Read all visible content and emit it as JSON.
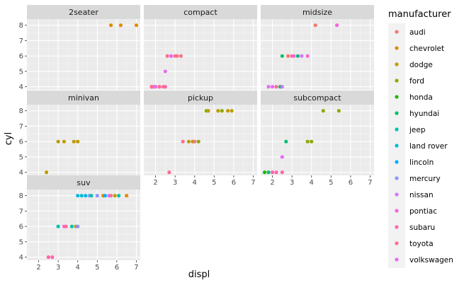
{
  "chart_data": {
    "type": "scatter",
    "facet_by": "class",
    "xlabel": "displ",
    "ylabel": "cyl",
    "xlim": [
      1.4,
      7.2
    ],
    "ylim": [
      3.8,
      8.4
    ],
    "x_ticks": [
      2,
      3,
      4,
      5,
      6,
      7
    ],
    "y_ticks": [
      4,
      5,
      6,
      7,
      8
    ],
    "grid": true,
    "legend": {
      "title": "manufacturer",
      "position": "right",
      "entries": [
        {
          "name": "audi",
          "color": "#F8766D"
        },
        {
          "name": "chevrolet",
          "color": "#E18A00"
        },
        {
          "name": "dodge",
          "color": "#BE9C00"
        },
        {
          "name": "ford",
          "color": "#8CAB00"
        },
        {
          "name": "honda",
          "color": "#24B700"
        },
        {
          "name": "hyundai",
          "color": "#00BE70"
        },
        {
          "name": "jeep",
          "color": "#00C1AB"
        },
        {
          "name": "land rover",
          "color": "#00BBDA"
        },
        {
          "name": "lincoln",
          "color": "#00ACFC"
        },
        {
          "name": "mercury",
          "color": "#8B93FF"
        },
        {
          "name": "nissan",
          "color": "#D575FE"
        },
        {
          "name": "pontiac",
          "color": "#F962DD"
        },
        {
          "name": "subaru",
          "color": "#FF65AC"
        },
        {
          "name": "toyota",
          "color": "#FF6C91"
        },
        {
          "name": "volkswagen",
          "color": "#E76BF3"
        }
      ]
    },
    "panels": [
      {
        "label": "2seater",
        "points": [
          {
            "x": 5.7,
            "y": 8,
            "m": "chevrolet"
          },
          {
            "x": 6.2,
            "y": 8,
            "m": "chevrolet"
          },
          {
            "x": 7.0,
            "y": 8,
            "m": "chevrolet"
          }
        ]
      },
      {
        "label": "compact",
        "points": [
          {
            "x": 1.8,
            "y": 4,
            "m": "audi"
          },
          {
            "x": 2.0,
            "y": 4,
            "m": "audi"
          },
          {
            "x": 2.8,
            "y": 6,
            "m": "audi"
          },
          {
            "x": 3.1,
            "y": 6,
            "m": "audi"
          },
          {
            "x": 2.5,
            "y": 5,
            "m": "volkswagen"
          },
          {
            "x": 1.9,
            "y": 4,
            "m": "volkswagen"
          },
          {
            "x": 2.0,
            "y": 4,
            "m": "volkswagen"
          },
          {
            "x": 1.8,
            "y": 4,
            "m": "subaru"
          },
          {
            "x": 2.2,
            "y": 4,
            "m": "subaru"
          },
          {
            "x": 2.4,
            "y": 4,
            "m": "toyota"
          },
          {
            "x": 1.8,
            "y": 4,
            "m": "toyota"
          },
          {
            "x": 2.2,
            "y": 4,
            "m": "toyota"
          },
          {
            "x": 2.5,
            "y": 4,
            "m": "subaru"
          },
          {
            "x": 2.6,
            "y": 6,
            "m": "toyota"
          },
          {
            "x": 2.8,
            "y": 6,
            "m": "volkswagen"
          },
          {
            "x": 3.0,
            "y": 6,
            "m": "toyota"
          },
          {
            "x": 3.3,
            "y": 6,
            "m": "toyota"
          }
        ]
      },
      {
        "label": "midsize",
        "points": [
          {
            "x": 4.2,
            "y": 8,
            "m": "audi"
          },
          {
            "x": 5.3,
            "y": 8,
            "m": "pontiac"
          },
          {
            "x": 1.8,
            "y": 4,
            "m": "volkswagen"
          },
          {
            "x": 2.0,
            "y": 4,
            "m": "volkswagen"
          },
          {
            "x": 2.2,
            "y": 4,
            "m": "toyota"
          },
          {
            "x": 2.4,
            "y": 4,
            "m": "toyota"
          },
          {
            "x": 2.4,
            "y": 4,
            "m": "hyundai"
          },
          {
            "x": 2.5,
            "y": 4,
            "m": "nissan"
          },
          {
            "x": 2.5,
            "y": 6,
            "m": "hyundai"
          },
          {
            "x": 2.8,
            "y": 6,
            "m": "audi"
          },
          {
            "x": 3.0,
            "y": 6,
            "m": "toyota"
          },
          {
            "x": 3.1,
            "y": 6,
            "m": "pontiac"
          },
          {
            "x": 3.3,
            "y": 6,
            "m": "hyundai"
          },
          {
            "x": 3.5,
            "y": 6,
            "m": "nissan"
          },
          {
            "x": 3.8,
            "y": 6,
            "m": "pontiac"
          }
        ]
      },
      {
        "label": "minivan",
        "points": [
          {
            "x": 2.4,
            "y": 4,
            "m": "dodge"
          },
          {
            "x": 3.0,
            "y": 6,
            "m": "dodge"
          },
          {
            "x": 3.3,
            "y": 6,
            "m": "dodge"
          },
          {
            "x": 3.8,
            "y": 6,
            "m": "dodge"
          },
          {
            "x": 4.0,
            "y": 6,
            "m": "dodge"
          }
        ]
      },
      {
        "label": "pickup",
        "points": [
          {
            "x": 2.7,
            "y": 4,
            "m": "toyota"
          },
          {
            "x": 3.4,
            "y": 6,
            "m": "toyota"
          },
          {
            "x": 3.7,
            "y": 6,
            "m": "dodge"
          },
          {
            "x": 3.9,
            "y": 6,
            "m": "dodge"
          },
          {
            "x": 4.0,
            "y": 6,
            "m": "toyota"
          },
          {
            "x": 4.2,
            "y": 6,
            "m": "ford"
          },
          {
            "x": 4.6,
            "y": 8,
            "m": "ford"
          },
          {
            "x": 4.7,
            "y": 8,
            "m": "dodge"
          },
          {
            "x": 5.2,
            "y": 8,
            "m": "dodge"
          },
          {
            "x": 5.4,
            "y": 8,
            "m": "ford"
          },
          {
            "x": 5.7,
            "y": 8,
            "m": "dodge"
          },
          {
            "x": 5.9,
            "y": 8,
            "m": "dodge"
          }
        ]
      },
      {
        "label": "subcompact",
        "points": [
          {
            "x": 1.6,
            "y": 4,
            "m": "honda"
          },
          {
            "x": 1.8,
            "y": 4,
            "m": "hyundai"
          },
          {
            "x": 2.0,
            "y": 4,
            "m": "volkswagen"
          },
          {
            "x": 2.0,
            "y": 4,
            "m": "subaru"
          },
          {
            "x": 2.2,
            "y": 4,
            "m": "subaru"
          },
          {
            "x": 2.5,
            "y": 4,
            "m": "subaru"
          },
          {
            "x": 2.5,
            "y": 5,
            "m": "volkswagen"
          },
          {
            "x": 2.7,
            "y": 6,
            "m": "hyundai"
          },
          {
            "x": 3.8,
            "y": 6,
            "m": "ford"
          },
          {
            "x": 4.0,
            "y": 6,
            "m": "ford"
          },
          {
            "x": 4.6,
            "y": 8,
            "m": "ford"
          },
          {
            "x": 5.4,
            "y": 8,
            "m": "ford"
          }
        ]
      },
      {
        "label": "suv",
        "points": [
          {
            "x": 2.5,
            "y": 4,
            "m": "subaru"
          },
          {
            "x": 2.7,
            "y": 4,
            "m": "subaru"
          },
          {
            "x": 3.0,
            "y": 6,
            "m": "jeep"
          },
          {
            "x": 3.3,
            "y": 6,
            "m": "pontiac"
          },
          {
            "x": 3.4,
            "y": 6,
            "m": "toyota"
          },
          {
            "x": 3.7,
            "y": 6,
            "m": "jeep"
          },
          {
            "x": 3.9,
            "y": 6,
            "m": "dodge"
          },
          {
            "x": 4.0,
            "y": 6,
            "m": "mercury"
          },
          {
            "x": 4.0,
            "y": 8,
            "m": "land rover"
          },
          {
            "x": 4.2,
            "y": 8,
            "m": "land rover"
          },
          {
            "x": 4.4,
            "y": 8,
            "m": "land rover"
          },
          {
            "x": 4.6,
            "y": 8,
            "m": "mercury"
          },
          {
            "x": 4.7,
            "y": 8,
            "m": "jeep"
          },
          {
            "x": 5.0,
            "y": 8,
            "m": "mercury"
          },
          {
            "x": 5.3,
            "y": 8,
            "m": "chevrolet"
          },
          {
            "x": 5.4,
            "y": 8,
            "m": "lincoln"
          },
          {
            "x": 5.6,
            "y": 8,
            "m": "nissan"
          },
          {
            "x": 5.7,
            "y": 8,
            "m": "toyota"
          },
          {
            "x": 5.9,
            "y": 8,
            "m": "dodge"
          },
          {
            "x": 6.1,
            "y": 8,
            "m": "jeep"
          },
          {
            "x": 6.5,
            "y": 8,
            "m": "chevrolet"
          }
        ]
      }
    ]
  }
}
